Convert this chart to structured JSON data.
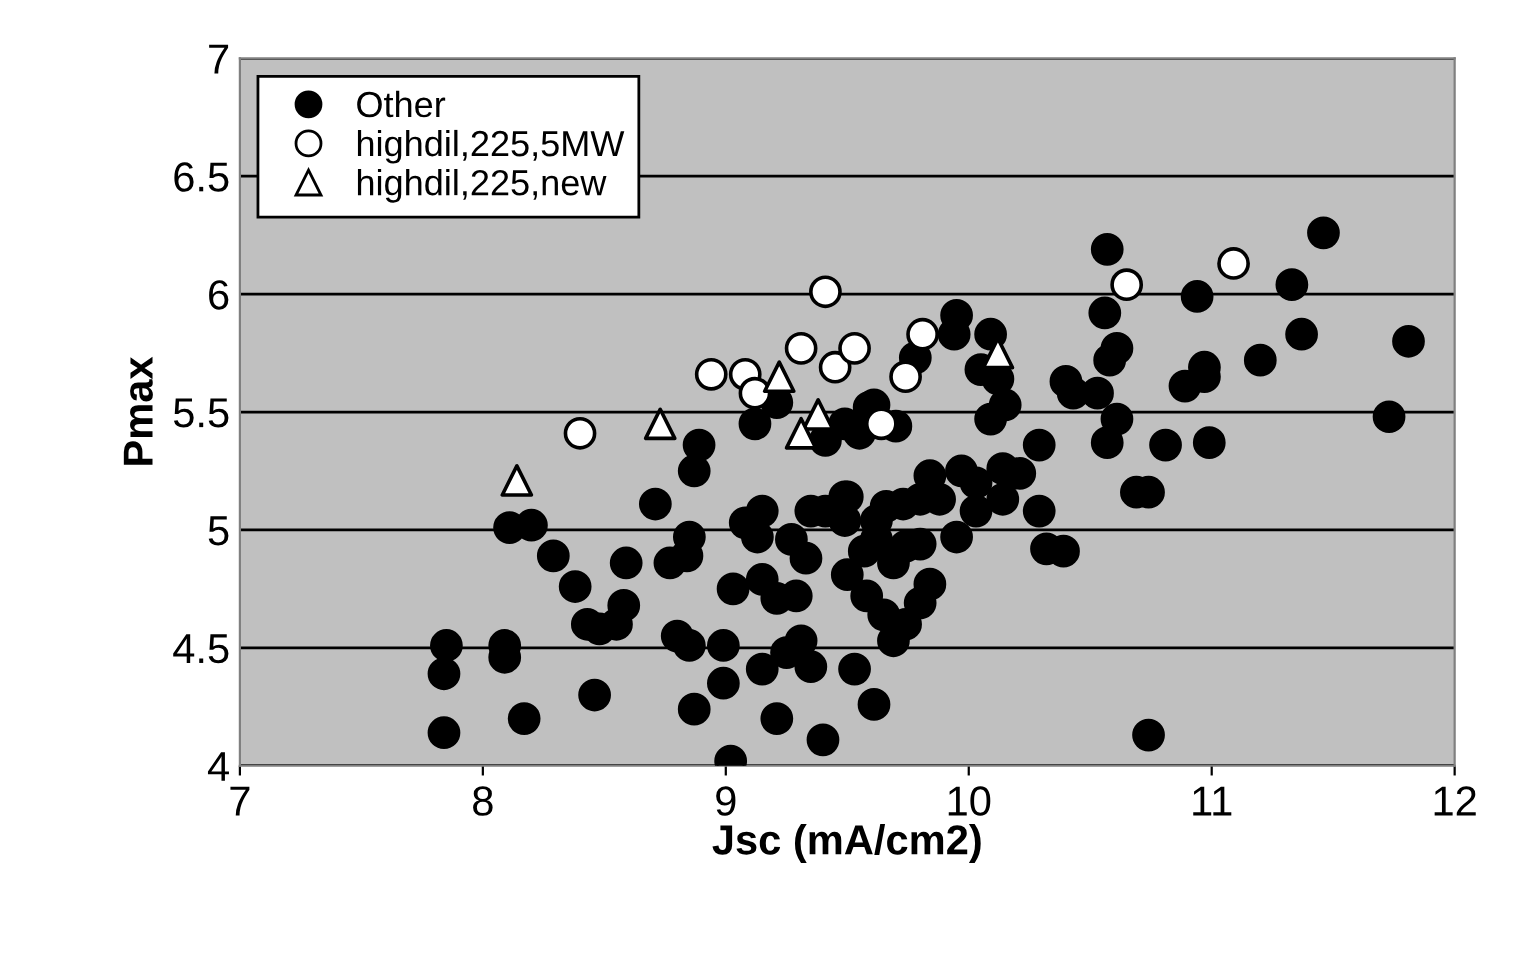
{
  "chart_data": {
    "type": "scatter",
    "xlabel": "Jsc (mA/cm2)",
    "ylabel": "Pmax",
    "xlim": [
      7,
      12
    ],
    "xticks": [
      7,
      8,
      9,
      10,
      11,
      12
    ],
    "ylim": [
      4,
      7
    ],
    "yticks": [
      4,
      4.5,
      5,
      5.5,
      6,
      6.5,
      7
    ],
    "grid": "y",
    "legend": "top left",
    "series": [
      {
        "name": "Other",
        "color": "#000000",
        "marker": "circle",
        "x": [
          8.89,
          9.12,
          9.21,
          9.41,
          9.49,
          9.55,
          9.59,
          9.95,
          9.94,
          10.09,
          10.05,
          10.12,
          9.78,
          9.61,
          9.7,
          10.15,
          10.09,
          10.4,
          10.43,
          10.53,
          10.57,
          10.56,
          10.58,
          10.61,
          10.61,
          10.57,
          10.29,
          10.81,
          10.99,
          10.89,
          10.97,
          10.97,
          10.94,
          11.2,
          11.37,
          11.33,
          11.46,
          11.81,
          11.73,
          10.74,
          10.69,
          10.74,
          10.29,
          10.32,
          10.39,
          10.21,
          10.14,
          10.14,
          10.03,
          10.03,
          9.97,
          9.95,
          9.84,
          9.88,
          9.8,
          9.73,
          9.66,
          9.62,
          9.5,
          9.49,
          9.8,
          9.74,
          9.62,
          9.57,
          9.69,
          9.84,
          9.8,
          9.74,
          9.69,
          9.58,
          9.65,
          9.5,
          9.53,
          9.61,
          8.11,
          8.2,
          8.29,
          8.38,
          8.43,
          8.48,
          8.55,
          8.58,
          8.59,
          7.85,
          7.84,
          7.84,
          8.09,
          8.09,
          8.17,
          8.46,
          8.71,
          8.77,
          8.84,
          8.85,
          8.87,
          8.8,
          8.85,
          8.99,
          8.99,
          8.87,
          9.02,
          9.03,
          9.08,
          9.15,
          9.13,
          9.15,
          9.21,
          9.15,
          9.21,
          9.25,
          9.31,
          9.35,
          9.4,
          9.29,
          9.33,
          9.27,
          9.35,
          9.41,
          9.49
        ],
        "values": [
          5.36,
          5.45,
          5.54,
          5.38,
          5.45,
          5.41,
          5.52,
          5.91,
          5.83,
          5.83,
          5.68,
          5.64,
          5.73,
          5.53,
          5.44,
          5.53,
          5.47,
          5.63,
          5.58,
          5.58,
          6.19,
          5.92,
          5.72,
          5.77,
          5.47,
          5.37,
          5.36,
          5.36,
          5.37,
          5.61,
          5.69,
          5.65,
          5.99,
          5.72,
          5.83,
          6.04,
          6.26,
          5.8,
          5.48,
          5.16,
          5.16,
          4.13,
          5.08,
          4.92,
          4.91,
          5.24,
          5.26,
          5.13,
          5.2,
          5.08,
          5.25,
          4.97,
          5.23,
          5.13,
          5.13,
          5.11,
          5.1,
          5.04,
          5.14,
          5.04,
          4.94,
          4.93,
          4.96,
          4.91,
          4.86,
          4.77,
          4.69,
          4.6,
          4.53,
          4.72,
          4.64,
          4.81,
          4.41,
          4.26,
          5.01,
          5.02,
          4.89,
          4.76,
          4.6,
          4.58,
          4.6,
          4.68,
          4.86,
          4.51,
          4.39,
          4.14,
          4.51,
          4.46,
          4.2,
          4.3,
          5.11,
          4.86,
          4.89,
          4.97,
          5.25,
          4.55,
          4.51,
          4.51,
          4.35,
          4.24,
          4.02,
          4.75,
          5.03,
          5.08,
          4.97,
          4.79,
          4.71,
          4.41,
          4.2,
          4.48,
          4.53,
          4.42,
          4.11,
          4.72,
          4.88,
          4.96,
          5.08,
          5.08,
          5.14
        ]
      },
      {
        "name": "highdil,225,5MW",
        "color": "#ffffff",
        "marker": "circle",
        "x": [
          8.4,
          8.94,
          9.08,
          9.12,
          9.31,
          9.41,
          9.45,
          9.53,
          9.64,
          9.74,
          9.81,
          10.65,
          11.09
        ],
        "values": [
          5.41,
          5.66,
          5.66,
          5.58,
          5.77,
          6.01,
          5.69,
          5.77,
          5.45,
          5.65,
          5.83,
          6.04,
          6.13
        ]
      },
      {
        "name": "highdil,225,new",
        "color": "#ffffff",
        "marker": "triangle",
        "x": [
          8.73,
          9.22,
          9.38,
          9.31,
          10.12,
          8.14
        ],
        "values": [
          5.45,
          5.65,
          5.49,
          5.41,
          5.75,
          5.21
        ]
      }
    ]
  }
}
